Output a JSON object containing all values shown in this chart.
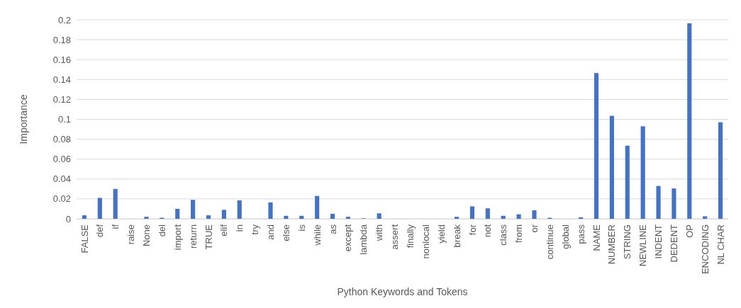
{
  "chart_data": {
    "type": "bar",
    "xlabel": "Python Keywords and Tokens",
    "ylabel": "Importance",
    "categories": [
      "FALSE",
      "def",
      "if",
      "raise",
      "None",
      "del",
      "import",
      "return",
      "TRUE",
      "elif",
      "in",
      "try",
      "and",
      "else",
      "is",
      "while",
      "as",
      "except",
      "lambda",
      "with",
      "assert",
      "finally",
      "nonlocal",
      "yield",
      "break",
      "for",
      "not",
      "class",
      "from",
      "or",
      "continue",
      "global",
      "pass",
      "NAME",
      "NUMBER",
      "STRING",
      "NEWLINE",
      "INDENT",
      "DEDENT",
      "OP",
      "ENCODING",
      "NL CHAR"
    ],
    "values": [
      0.0035,
      0.021,
      0.03,
      0,
      0.002,
      0.001,
      0.01,
      0.019,
      0.0035,
      0.009,
      0.0185,
      0,
      0.0165,
      0.003,
      0.003,
      0.023,
      0.005,
      0.002,
      0.0005,
      0.0055,
      0,
      0,
      0,
      0,
      0.002,
      0.0125,
      0.0105,
      0.003,
      0.0045,
      0.0085,
      0.001,
      0,
      0.0015,
      0.1465,
      0.1035,
      0.0735,
      0.093,
      0.033,
      0.0305,
      0.1965,
      0.0025,
      0.097
    ],
    "color": "#4472c4",
    "ylim": [
      0,
      0.2
    ],
    "yticks": [
      0,
      0.02,
      0.04,
      0.06,
      0.08,
      0.1,
      0.12,
      0.14,
      0.16,
      0.18,
      0.2
    ],
    "grid": true
  }
}
